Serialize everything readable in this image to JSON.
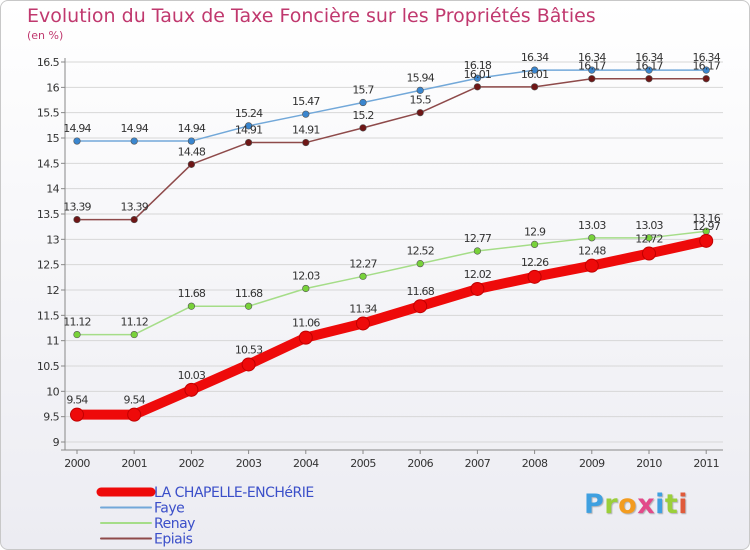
{
  "chart_data": {
    "type": "line",
    "title": "Evolution du Taux de Taxe Foncière sur les Propriétés Bâties",
    "ylabel": "(en %)",
    "xlabel": "",
    "x": [
      2000,
      2001,
      2002,
      2003,
      2004,
      2005,
      2006,
      2007,
      2008,
      2009,
      2010,
      2011
    ],
    "x_tick_labels": [
      "2000",
      "2001",
      "2002",
      "2003",
      "2004",
      "2005",
      "2006",
      "2007",
      "2008",
      "2009",
      "2010",
      "2011"
    ],
    "ylim": [
      9,
      16.5
    ],
    "y_tick_labels": [
      "9",
      "9.5",
      "10",
      "10.5",
      "11",
      "11.5",
      "12",
      "12.5",
      "13",
      "13.5",
      "14",
      "14.5",
      "15",
      "15.5",
      "16",
      "16.5"
    ],
    "grid": "horizontal",
    "legend_position": "bottom-left",
    "series": [
      {
        "name": "LA CHAPELLE-ENCHéRIE",
        "color": "#ee0a0a",
        "emphasis": "thick",
        "values": [
          9.54,
          9.54,
          10.03,
          10.53,
          11.06,
          11.34,
          11.68,
          12.02,
          12.26,
          12.48,
          12.72,
          12.97
        ],
        "labels": [
          "9.54",
          "9.54",
          "10.03",
          "10.53",
          "11.06",
          "11.34",
          "11.68",
          "12.02",
          "12.26",
          "12.48",
          "12.72",
          "12.97"
        ]
      },
      {
        "name": "Faye",
        "color": "#72a8d9",
        "marker_color": "#3a86cf",
        "emphasis": "thin",
        "values": [
          14.94,
          14.94,
          14.94,
          15.24,
          15.47,
          15.7,
          15.94,
          16.18,
          16.34,
          16.34,
          16.34,
          16.34
        ],
        "labels": [
          "14.94",
          "14.94",
          "14.94",
          "15.24",
          "15.47",
          "15.7",
          "15.94",
          "16.18",
          "16.34",
          "16.34",
          "16.34",
          "16.34"
        ]
      },
      {
        "name": "Renay",
        "color": "#a5dd88",
        "marker_color": "#78d23a",
        "emphasis": "thin",
        "values": [
          11.12,
          11.12,
          11.68,
          11.68,
          12.03,
          12.27,
          12.52,
          12.77,
          12.9,
          13.03,
          13.03,
          13.16
        ],
        "labels": [
          "11.12",
          "11.12",
          "11.68",
          "11.68",
          "12.03",
          "12.27",
          "12.52",
          "12.77",
          "12.9",
          "13.03",
          "13.03",
          "13.16"
        ]
      },
      {
        "name": "Epiais",
        "color": "#8e4a4a",
        "marker_color": "#6e1616",
        "emphasis": "thin",
        "values": [
          13.39,
          13.39,
          14.48,
          14.91,
          14.91,
          15.2,
          15.5,
          16.01,
          16.01,
          16.17,
          16.17,
          16.17
        ],
        "labels": [
          "13.39",
          "13.39",
          "14.48",
          "14.91",
          "14.91",
          "15.2",
          "15.5",
          "16.01",
          "16.01",
          "16.17",
          "16.17",
          "16.17"
        ]
      }
    ]
  },
  "logo": {
    "letters": [
      "P",
      "r",
      "o",
      "x",
      "i",
      "t",
      "i"
    ],
    "colors": [
      "#3fa0e0",
      "#9bcf3a",
      "#f39c1f",
      "#e24a8a",
      "#3fa0e0",
      "#9bcf3a",
      "#e05a3a"
    ]
  }
}
